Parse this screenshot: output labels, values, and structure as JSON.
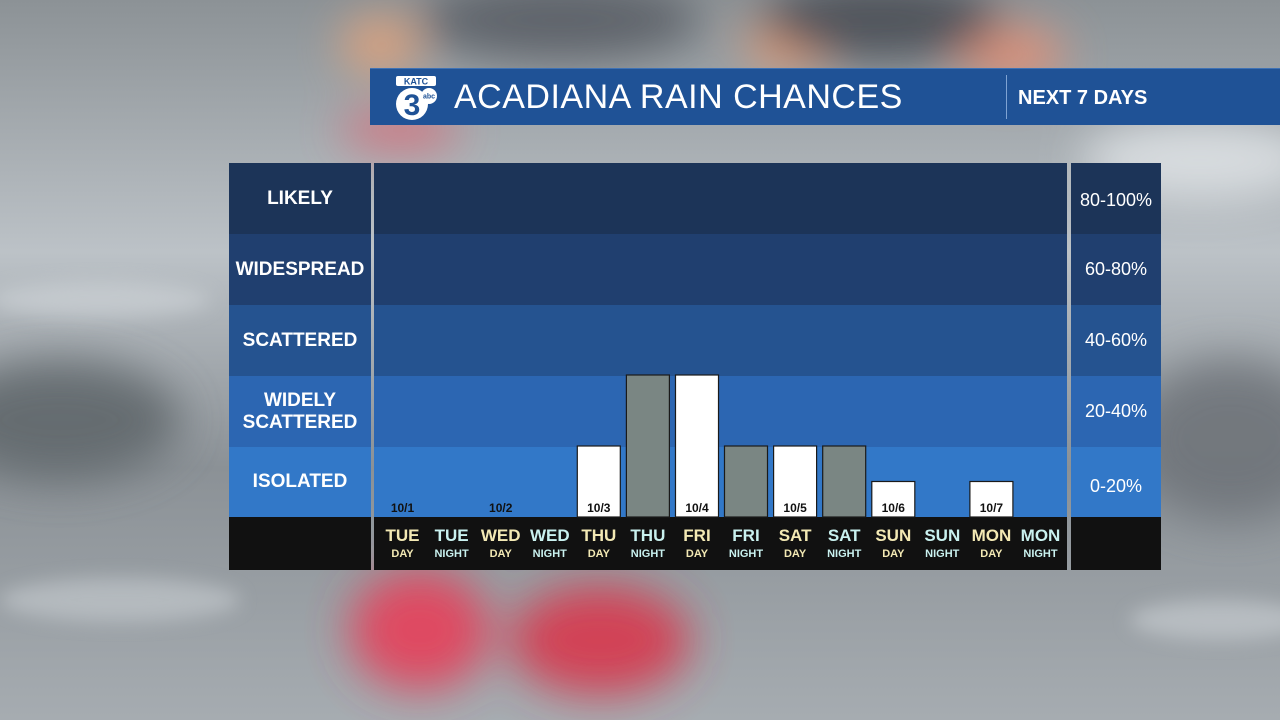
{
  "header": {
    "title": "ACADIANA RAIN CHANCES",
    "subtitle": "NEXT 7 DAYS",
    "logo": {
      "top": "KATC",
      "number": "3",
      "badge": "abc"
    }
  },
  "bands": [
    {
      "label": "LIKELY",
      "range": "80-100%",
      "color": "#1c3458"
    },
    {
      "label": "WIDESPREAD",
      "range": "60-80%",
      "color": "#203f6f"
    },
    {
      "label": "SCATTERED",
      "range": "40-60%",
      "color": "#2553902"
    },
    {
      "label": "WIDELY SCATTERED",
      "range": "20-40%",
      "color": "#2c66b2"
    },
    {
      "label": "ISOLATED",
      "range": "0-20%",
      "color": "#3278c8"
    }
  ],
  "colors": {
    "day_bar": "#ffffff",
    "night_bar": "#7a8683",
    "day_text": "#f3e9b4",
    "night_text": "#c9f1ef",
    "footer": "#111111"
  },
  "chart_data": {
    "type": "bar",
    "title": "ACADIANA RAIN CHANCES",
    "subtitle": "NEXT 7 DAYS",
    "y_scale": "categorical bands (0 = none, 1 = ISOLATED ... 5 = LIKELY)",
    "ylim": [
      0,
      5
    ],
    "categories": [
      {
        "day": "TUE",
        "period": "DAY",
        "date": "10/1",
        "value": 0
      },
      {
        "day": "TUE",
        "period": "NIGHT",
        "date": "",
        "value": 0
      },
      {
        "day": "WED",
        "period": "DAY",
        "date": "10/2",
        "value": 0
      },
      {
        "day": "WED",
        "period": "NIGHT",
        "date": "",
        "value": 0
      },
      {
        "day": "THU",
        "period": "DAY",
        "date": "10/3",
        "value": 1.0
      },
      {
        "day": "THU",
        "period": "NIGHT",
        "date": "",
        "value": 2.0
      },
      {
        "day": "FRI",
        "period": "DAY",
        "date": "10/4",
        "value": 2.0
      },
      {
        "day": "FRI",
        "period": "NIGHT",
        "date": "",
        "value": 1.0
      },
      {
        "day": "SAT",
        "period": "DAY",
        "date": "10/5",
        "value": 1.0
      },
      {
        "day": "SAT",
        "period": "NIGHT",
        "date": "",
        "value": 1.0
      },
      {
        "day": "SUN",
        "period": "DAY",
        "date": "10/6",
        "value": 0.5
      },
      {
        "day": "SUN",
        "period": "NIGHT",
        "date": "",
        "value": 0
      },
      {
        "day": "MON",
        "period": "DAY",
        "date": "10/7",
        "value": 0.5
      },
      {
        "day": "MON",
        "period": "NIGHT",
        "date": "",
        "value": 0
      }
    ]
  }
}
